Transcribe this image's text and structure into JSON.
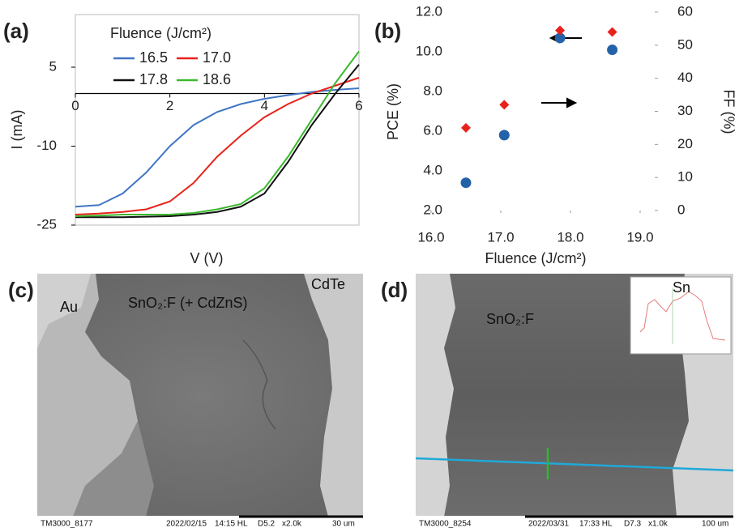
{
  "chart_data": [
    {
      "type": "line",
      "label": "(a)",
      "xlabel": "V (V)",
      "ylabel": "I (mA)",
      "legend_title": "Fluence (J/cm²)",
      "legend": "upper left",
      "x": [
        0,
        0.5,
        1,
        1.5,
        2,
        2.5,
        3,
        3.5,
        4,
        4.5,
        5,
        5.5,
        6
      ],
      "xlim": [
        0,
        6
      ],
      "xticks": [
        0,
        2,
        4,
        6
      ],
      "ylim": [
        -25,
        15
      ],
      "yticks": [
        -25,
        -10,
        5
      ],
      "series": [
        {
          "name": "16.5",
          "color": "#3f76c4",
          "values": [
            -21.5,
            -21.2,
            -19,
            -15,
            -10,
            -6,
            -3.5,
            -2,
            -1,
            -0.3,
            0.3,
            0.7,
            1
          ]
        },
        {
          "name": "17.0",
          "color": "#e8221b",
          "values": [
            -23,
            -22.8,
            -22.5,
            -22,
            -20.5,
            -17,
            -12,
            -8,
            -4.5,
            -2,
            0,
            1.5,
            3
          ]
        },
        {
          "name": "17.8",
          "color": "#111111",
          "values": [
            -23.5,
            -23.5,
            -23.5,
            -23.4,
            -23.3,
            -23,
            -22.5,
            -21.5,
            -19,
            -13,
            -6,
            0,
            5.5
          ]
        },
        {
          "name": "18.6",
          "color": "#3cb82e",
          "values": [
            -23.3,
            -23.2,
            -23,
            -23,
            -23,
            -22.7,
            -22,
            -21,
            -18,
            -12,
            -5,
            2,
            8
          ]
        }
      ]
    },
    {
      "type": "scatter",
      "label": "(b)",
      "xlabel": "Fluence (J/cm²)",
      "ylabel": "PCE (%)",
      "y2label": "FF (%)",
      "xlim": [
        16,
        19
      ],
      "xticks": [
        {
          "value": 16,
          "label": "16.0"
        },
        {
          "value": 17,
          "label": "17.0"
        },
        {
          "value": 18,
          "label": "18.0"
        },
        {
          "value": 19,
          "label": "19.0"
        }
      ],
      "ylim": [
        2,
        12
      ],
      "yticks": [
        {
          "value": 2,
          "label": "2.0"
        },
        {
          "value": 4,
          "label": "4.0"
        },
        {
          "value": 6,
          "label": "6.0"
        },
        {
          "value": 8,
          "label": "8.0"
        },
        {
          "value": 10,
          "label": "10.0"
        },
        {
          "value": 12,
          "label": "12.0"
        }
      ],
      "y2lim": [
        0,
        60
      ],
      "y2ticks": [
        0,
        10,
        20,
        30,
        40,
        50,
        60
      ],
      "series": [
        {
          "color": "#2462a8",
          "marker": "circle",
          "x": [
            16.5,
            17.05,
            17.85,
            18.6
          ],
          "values": [
            3.4,
            5.8,
            10.7,
            10.1
          ]
        },
        {
          "color": "#e8221b",
          "marker": "diamond",
          "axis": "y2",
          "x": [
            16.5,
            17.05,
            17.85,
            18.6
          ],
          "values": [
            25,
            32,
            54.5,
            54
          ]
        }
      ]
    }
  ],
  "panels": {
    "c": {
      "label": "(c)",
      "regions": [
        "Au",
        "SnO₂:F (+ CdZnS)",
        "CdTe"
      ],
      "footer": [
        "TM3000_8177",
        "2022/02/15",
        "14:15 HL",
        "D5.2",
        "x2.0k",
        "30 um"
      ]
    },
    "d": {
      "label": "(d)",
      "regions": [
        "SnO₂:F"
      ],
      "inset": "Sn",
      "footer": [
        "TM3000_8254",
        "2022/03/31",
        "17:33 HL",
        "D7.3",
        "x1.0k",
        "100 um"
      ]
    }
  }
}
